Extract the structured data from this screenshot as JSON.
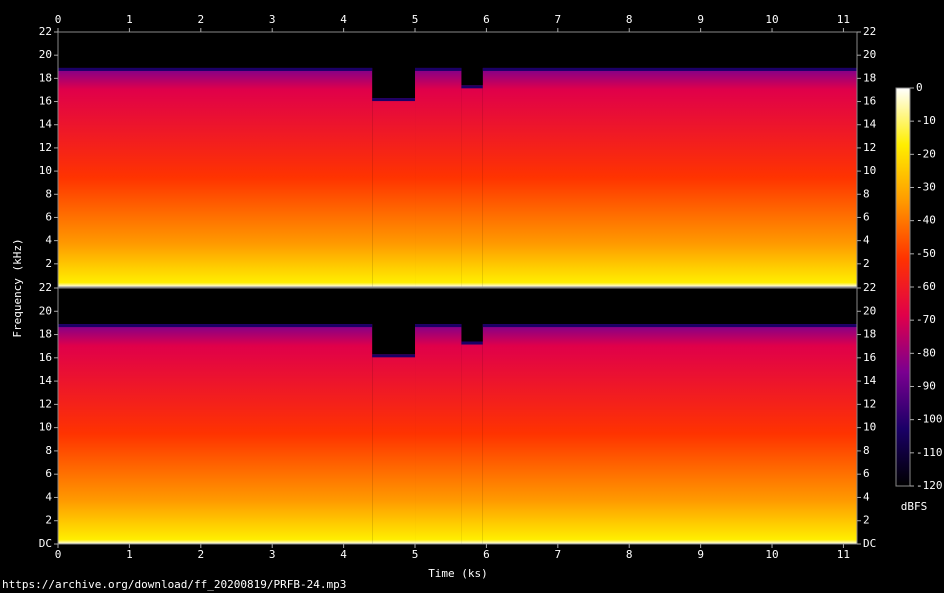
{
  "chart_data": [
    {
      "type": "spectrogram",
      "xlim": [
        0,
        11.19
      ],
      "xticks": [
        0,
        1,
        2,
        3,
        4,
        5,
        6,
        7,
        8,
        9,
        10,
        11
      ],
      "ylim": [
        0,
        22
      ],
      "yticks": [
        2,
        4,
        6,
        8,
        10,
        12,
        14,
        16,
        18,
        20,
        22
      ],
      "x": [
        0,
        4.4,
        5.0,
        5.65,
        5.95
      ],
      "values": [
        18.9,
        16.3,
        18.9,
        17.4,
        18.9
      ]
    },
    {
      "type": "spectrogram",
      "xlim": [
        0,
        11.19
      ],
      "xticks": [
        0,
        1,
        2,
        3,
        4,
        5,
        6,
        7,
        8,
        9,
        10,
        11
      ],
      "ylim": [
        0,
        22
      ],
      "yticks": [
        {
          "value": 0,
          "label": "DC"
        },
        2,
        4,
        6,
        8,
        10,
        12,
        14,
        16,
        18,
        20,
        22
      ],
      "x": [
        0,
        4.4,
        5.0,
        5.65,
        5.95
      ],
      "values": [
        18.9,
        16.3,
        18.9,
        17.4,
        18.9
      ]
    }
  ],
  "colorbar": {
    "zlim": [
      -120,
      0
    ],
    "zticks": [
      0,
      -10,
      -20,
      -30,
      -40,
      -50,
      -60,
      -70,
      -80,
      -90,
      -100,
      -110,
      -120
    ],
    "zlabel": "dBFS",
    "colormap": [
      "#000000",
      "#1a0066",
      "#7a0090",
      "#e0004a",
      "#ff3300",
      "#ff9900",
      "#ffee00",
      "#ffffff"
    ]
  },
  "xlabel": "Time (ks)",
  "ylabel": "Frequency (kHz)",
  "footer": "https://archive.org/download/ff_20200819/PRFB-24.mp3"
}
